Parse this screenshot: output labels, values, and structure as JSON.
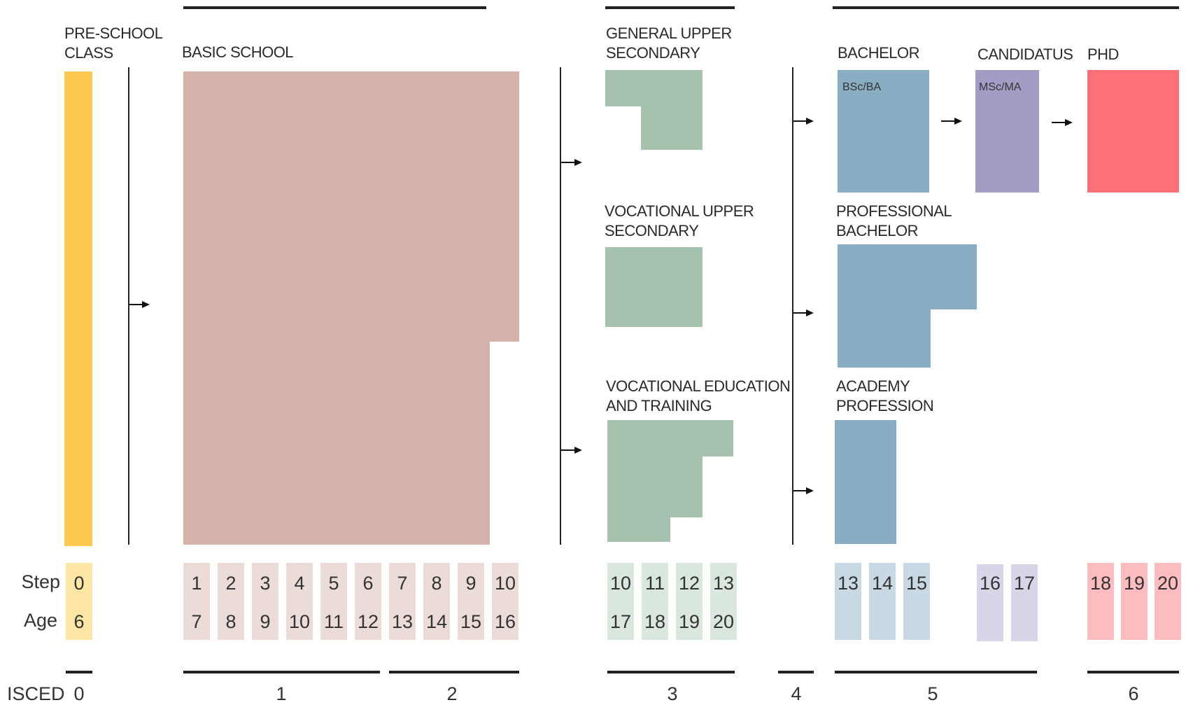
{
  "labels": {
    "preschool": [
      "PRE-SCHOOL",
      "CLASS"
    ],
    "basic": "BASIC SCHOOL",
    "general_upper": [
      "GENERAL UPPER",
      "SECONDARY"
    ],
    "vocational_upper": [
      "VOCATIONAL UPPER",
      "SECONDARY"
    ],
    "vet": [
      "VOCATIONAL EDUCATION",
      "AND TRAINING"
    ],
    "bachelor": "BACHELOR",
    "candidatus": "CANDIDATUS",
    "phd": "PHD",
    "professional_bachelor": [
      "PROFESSIONAL",
      "BACHELOR"
    ],
    "academy_profession": [
      "ACADEMY",
      "PROFESSION"
    ],
    "bsc_ba": "BSc/BA",
    "msc_ma": "MSc/MA"
  },
  "rows": {
    "step": "Step",
    "age": "Age",
    "isced": "ISCED"
  },
  "columns": [
    {
      "step": "0",
      "age": "6",
      "color": "#fde5a5"
    },
    {
      "step": "1",
      "age": "7",
      "color": "#ecdcd8"
    },
    {
      "step": "2",
      "age": "8",
      "color": "#ecdcd8"
    },
    {
      "step": "3",
      "age": "9",
      "color": "#ecdcd8"
    },
    {
      "step": "4",
      "age": "10",
      "color": "#ecdcd8"
    },
    {
      "step": "5",
      "age": "11",
      "color": "#ecdcd8"
    },
    {
      "step": "6",
      "age": "12",
      "color": "#ecdcd8"
    },
    {
      "step": "7",
      "age": "13",
      "color": "#ecdcd8"
    },
    {
      "step": "8",
      "age": "14",
      "color": "#ecdcd8"
    },
    {
      "step": "9",
      "age": "15",
      "color": "#ecdcd8"
    },
    {
      "step": "10",
      "age": "16",
      "color": "#ecdcd8"
    },
    {
      "step": "10",
      "age": "17",
      "color": "#d9e7de"
    },
    {
      "step": "11",
      "age": "18",
      "color": "#d9e7de"
    },
    {
      "step": "12",
      "age": "19",
      "color": "#d9e7de"
    },
    {
      "step": "13",
      "age": "20",
      "color": "#d9e7de"
    },
    {
      "step": "13",
      "age": "",
      "color": "#c9d9e3"
    },
    {
      "step": "14",
      "age": "",
      "color": "#c9d9e3"
    },
    {
      "step": "15",
      "age": "",
      "color": "#c9d9e3"
    },
    {
      "step": "16",
      "age": "",
      "color": "#d8d5e8"
    },
    {
      "step": "17",
      "age": "",
      "color": "#d8d5e8"
    },
    {
      "step": "18",
      "age": "",
      "color": "#fcbcc0"
    },
    {
      "step": "19",
      "age": "",
      "color": "#fcbcc0"
    },
    {
      "step": "20",
      "age": "",
      "color": "#fcbcc0"
    }
  ],
  "isced_levels": [
    "0",
    "1",
    "2",
    "3",
    "4",
    "5",
    "6"
  ],
  "colors": {
    "preschool": "#fdc94f",
    "basic": "#d4b2aa",
    "upper_secondary": "#a4c2ae",
    "bachelor": "#89adc3",
    "candidatus": "#a19dc4",
    "phd": "#fd7078"
  }
}
